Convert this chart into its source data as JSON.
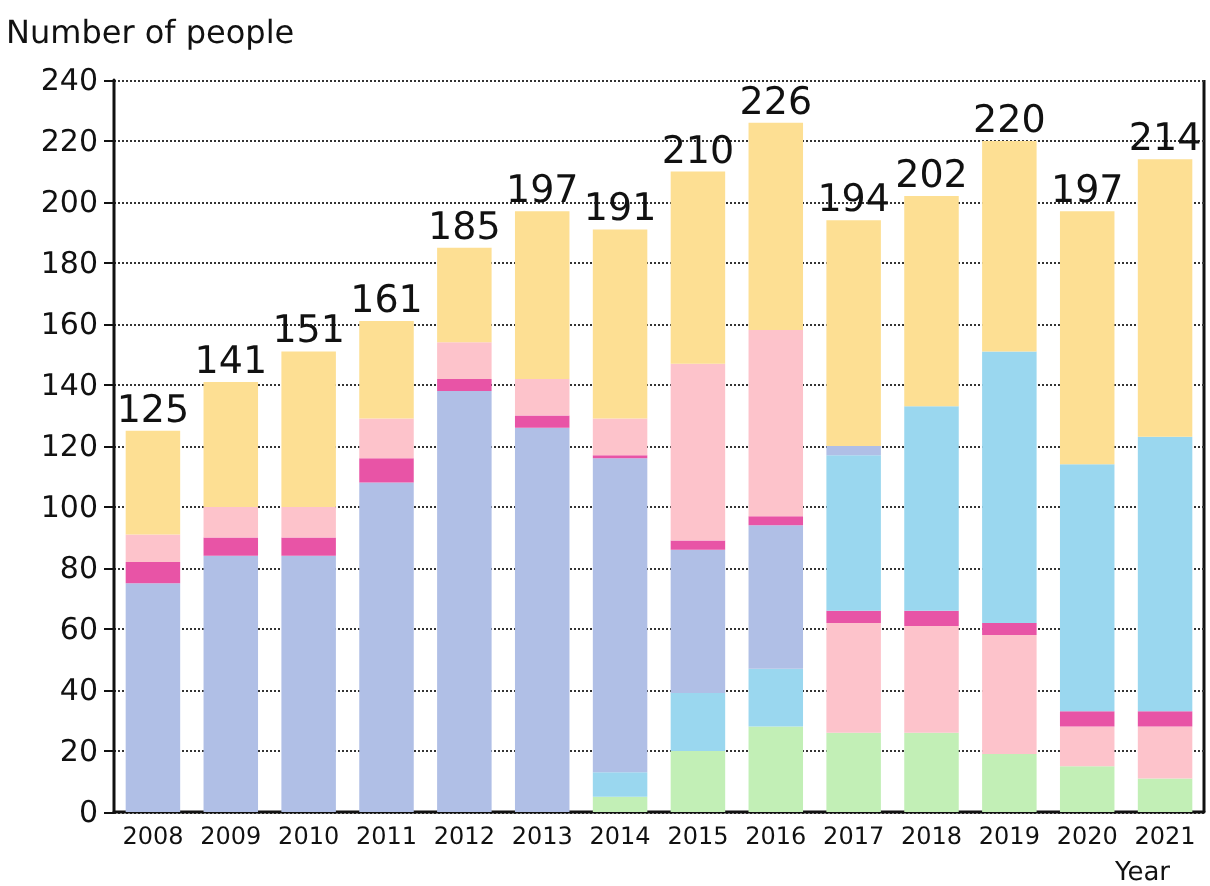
{
  "chart_data": {
    "type": "bar",
    "stacked": true,
    "ylabel": "Number of people",
    "xlabel": "Year",
    "categories": [
      "2008",
      "2009",
      "2010",
      "2011",
      "2012",
      "2013",
      "2014",
      "2015",
      "2016",
      "2017",
      "2018",
      "2019",
      "2020",
      "2021"
    ],
    "series": [
      {
        "color": "#c2efb6",
        "values": [
          null,
          null,
          null,
          null,
          null,
          null,
          5,
          20,
          28,
          26,
          26,
          19,
          15,
          11
        ]
      },
      {
        "color": "#9ad7ef",
        "values": [
          null,
          null,
          null,
          null,
          null,
          null,
          8,
          19,
          19,
          null,
          null,
          null,
          null,
          null
        ]
      },
      {
        "color": "#fdc3cb",
        "values": [
          null,
          null,
          null,
          null,
          null,
          null,
          null,
          null,
          null,
          36,
          35,
          39,
          13,
          17
        ]
      },
      {
        "color": "#b0bfe6",
        "values": [
          75,
          84,
          84,
          108,
          138,
          126,
          103,
          47,
          47,
          null,
          null,
          null,
          null,
          null
        ]
      },
      {
        "color": "#e854a6",
        "values": [
          7,
          6,
          6,
          8,
          4,
          4,
          1,
          3,
          3,
          4,
          5,
          4,
          5,
          5
        ]
      },
      {
        "color": "#fdc3cb",
        "values": [
          9,
          10,
          10,
          13,
          12,
          12,
          12,
          58,
          61,
          null,
          null,
          null,
          null,
          null
        ]
      },
      {
        "color": "#9ad7ef",
        "values": [
          null,
          null,
          null,
          null,
          null,
          null,
          null,
          null,
          null,
          51,
          67,
          89,
          81,
          90
        ]
      },
      {
        "color": "#b0bfe6",
        "values": [
          null,
          null,
          null,
          null,
          null,
          null,
          null,
          null,
          null,
          3,
          null,
          null,
          null,
          null
        ]
      },
      {
        "color": "#fddf93",
        "values": [
          34,
          41,
          51,
          32,
          31,
          55,
          62,
          63,
          68,
          74,
          69,
          69,
          83,
          91
        ]
      }
    ],
    "totals": [
      "125",
      "141",
      "151",
      "161",
      "185",
      "197",
      "191",
      "210",
      "226",
      "194",
      "202",
      "220",
      "197",
      "214"
    ],
    "ylim": [
      0,
      240
    ],
    "yticks": [
      0,
      20,
      40,
      60,
      80,
      100,
      120,
      140,
      160,
      180,
      200,
      220,
      240
    ],
    "grid": "y"
  }
}
